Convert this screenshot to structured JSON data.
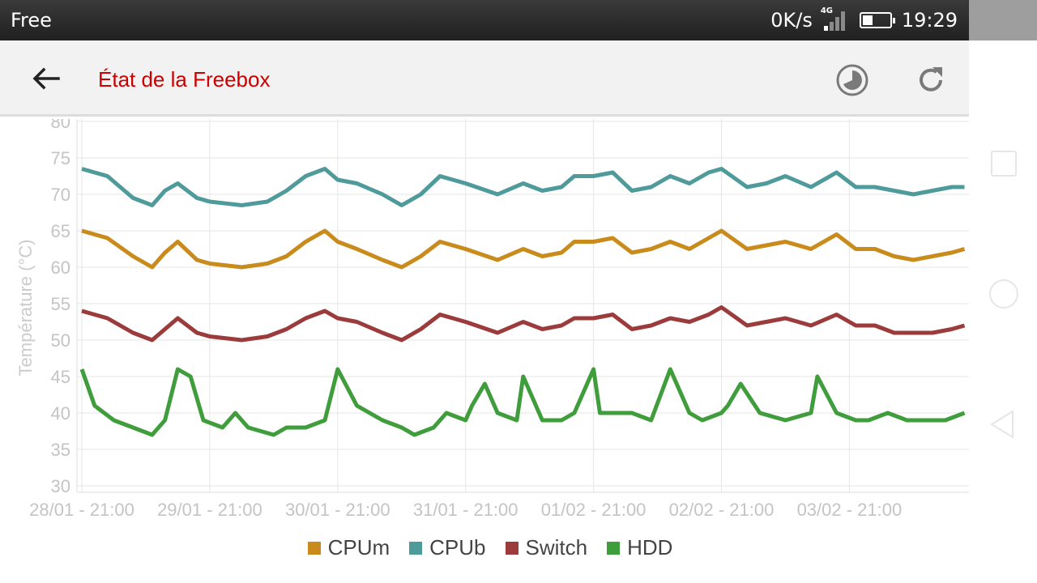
{
  "status_bar": {
    "carrier": "Free",
    "net_speed": "0K/s",
    "network_type": "4G",
    "time": "19:29"
  },
  "app_bar": {
    "title": "État de la Freebox",
    "back_icon": "arrow-left-icon",
    "history_icon": "history-clock-icon",
    "refresh_icon": "refresh-icon"
  },
  "colors": {
    "title": "#cc0000",
    "CPUm": "#c98b1b",
    "CPUb": "#4f9a9b",
    "Switch": "#9c3b3b",
    "HDD": "#3f9d3c"
  },
  "chart_data": {
    "type": "line",
    "ylabel": "Température (°C)",
    "xlabel": "",
    "ylim": [
      30,
      80
    ],
    "yticks": [
      "30",
      "35",
      "40",
      "45",
      "50",
      "55",
      "60",
      "65",
      "70",
      "75",
      "80"
    ],
    "xticks": [
      "28/01 - 21:00",
      "29/01 - 21:00",
      "30/01 - 21:00",
      "31/01 - 21:00",
      "01/02 - 21:00",
      "02/02 - 21:00",
      "03/02 - 21:00"
    ],
    "xlim": [
      -0.05,
      6.95
    ],
    "grid": true,
    "legend_position": "bottom",
    "series": [
      {
        "name": "CPUm",
        "x": [
          0,
          0.2,
          0.4,
          0.55,
          0.65,
          0.75,
          0.9,
          1.0,
          1.25,
          1.45,
          1.6,
          1.75,
          1.9,
          2.0,
          2.15,
          2.35,
          2.5,
          2.65,
          2.8,
          3.0,
          3.25,
          3.45,
          3.6,
          3.75,
          3.85,
          4.0,
          4.15,
          4.3,
          4.45,
          4.6,
          4.75,
          4.9,
          5.0,
          5.2,
          5.35,
          5.5,
          5.7,
          5.9,
          6.05,
          6.2,
          6.35,
          6.5,
          6.65,
          6.8,
          6.9
        ],
        "values": [
          65,
          64,
          61.5,
          60,
          62,
          63.5,
          61,
          60.5,
          60,
          60.5,
          61.5,
          63.5,
          65,
          63.5,
          62.5,
          61,
          60,
          61.5,
          63.5,
          62.5,
          61,
          62.5,
          61.5,
          62,
          63.5,
          63.5,
          64,
          62,
          62.5,
          63.5,
          62.5,
          64,
          65,
          62.5,
          63,
          63.5,
          62.5,
          64.5,
          62.5,
          62.5,
          61.5,
          61,
          61.5,
          62,
          62.5
        ]
      },
      {
        "name": "CPUb",
        "x": [
          0,
          0.2,
          0.4,
          0.55,
          0.65,
          0.75,
          0.9,
          1.0,
          1.25,
          1.45,
          1.6,
          1.75,
          1.9,
          2.0,
          2.15,
          2.35,
          2.5,
          2.65,
          2.8,
          3.0,
          3.25,
          3.45,
          3.6,
          3.75,
          3.85,
          4.0,
          4.15,
          4.3,
          4.45,
          4.6,
          4.75,
          4.9,
          5.0,
          5.2,
          5.35,
          5.5,
          5.7,
          5.9,
          6.05,
          6.2,
          6.35,
          6.5,
          6.65,
          6.8,
          6.9
        ],
        "values": [
          73.5,
          72.5,
          69.5,
          68.5,
          70.5,
          71.5,
          69.5,
          69,
          68.5,
          69,
          70.5,
          72.5,
          73.5,
          72,
          71.5,
          70,
          68.5,
          70,
          72.5,
          71.5,
          70,
          71.5,
          70.5,
          71,
          72.5,
          72.5,
          73,
          70.5,
          71,
          72.5,
          71.5,
          73,
          73.5,
          71,
          71.5,
          72.5,
          71,
          73,
          71,
          71,
          70.5,
          70,
          70.5,
          71,
          71
        ]
      },
      {
        "name": "Switch",
        "x": [
          0,
          0.2,
          0.4,
          0.55,
          0.65,
          0.75,
          0.9,
          1.0,
          1.25,
          1.45,
          1.6,
          1.75,
          1.9,
          2.0,
          2.15,
          2.35,
          2.5,
          2.65,
          2.8,
          3.0,
          3.25,
          3.45,
          3.6,
          3.75,
          3.85,
          4.0,
          4.15,
          4.3,
          4.45,
          4.6,
          4.75,
          4.9,
          5.0,
          5.2,
          5.35,
          5.5,
          5.7,
          5.9,
          6.05,
          6.2,
          6.35,
          6.5,
          6.65,
          6.8,
          6.9
        ],
        "values": [
          54,
          53,
          51,
          50,
          51.5,
          53,
          51,
          50.5,
          50,
          50.5,
          51.5,
          53,
          54,
          53,
          52.5,
          51,
          50,
          51.5,
          53.5,
          52.5,
          51,
          52.5,
          51.5,
          52,
          53,
          53,
          53.5,
          51.5,
          52,
          53,
          52.5,
          53.5,
          54.5,
          52,
          52.5,
          53,
          52,
          53.5,
          52,
          52,
          51,
          51,
          51,
          51.5,
          52
        ]
      },
      {
        "name": "HDD",
        "x": [
          0,
          0.1,
          0.25,
          0.4,
          0.55,
          0.65,
          0.75,
          0.85,
          0.95,
          1.1,
          1.2,
          1.3,
          1.5,
          1.6,
          1.75,
          1.9,
          2.0,
          2.15,
          2.35,
          2.5,
          2.6,
          2.75,
          2.85,
          3.0,
          3.05,
          3.15,
          3.25,
          3.4,
          3.45,
          3.6,
          3.75,
          3.85,
          4.0,
          4.05,
          4.15,
          4.3,
          4.45,
          4.6,
          4.75,
          4.85,
          5.0,
          5.05,
          5.15,
          5.3,
          5.5,
          5.7,
          5.75,
          5.9,
          6.05,
          6.15,
          6.3,
          6.45,
          6.6,
          6.75,
          6.9
        ],
        "values": [
          46,
          41,
          39,
          38,
          37,
          39,
          46,
          45,
          39,
          38,
          40,
          38,
          37,
          38,
          38,
          39,
          46,
          41,
          39,
          38,
          37,
          38,
          40,
          39,
          41,
          44,
          40,
          39,
          45,
          39,
          39,
          40,
          46,
          40,
          40,
          40,
          39,
          46,
          40,
          39,
          40,
          41,
          44,
          40,
          39,
          40,
          45,
          40,
          39,
          39,
          40,
          39,
          39,
          39,
          40
        ]
      }
    ]
  }
}
